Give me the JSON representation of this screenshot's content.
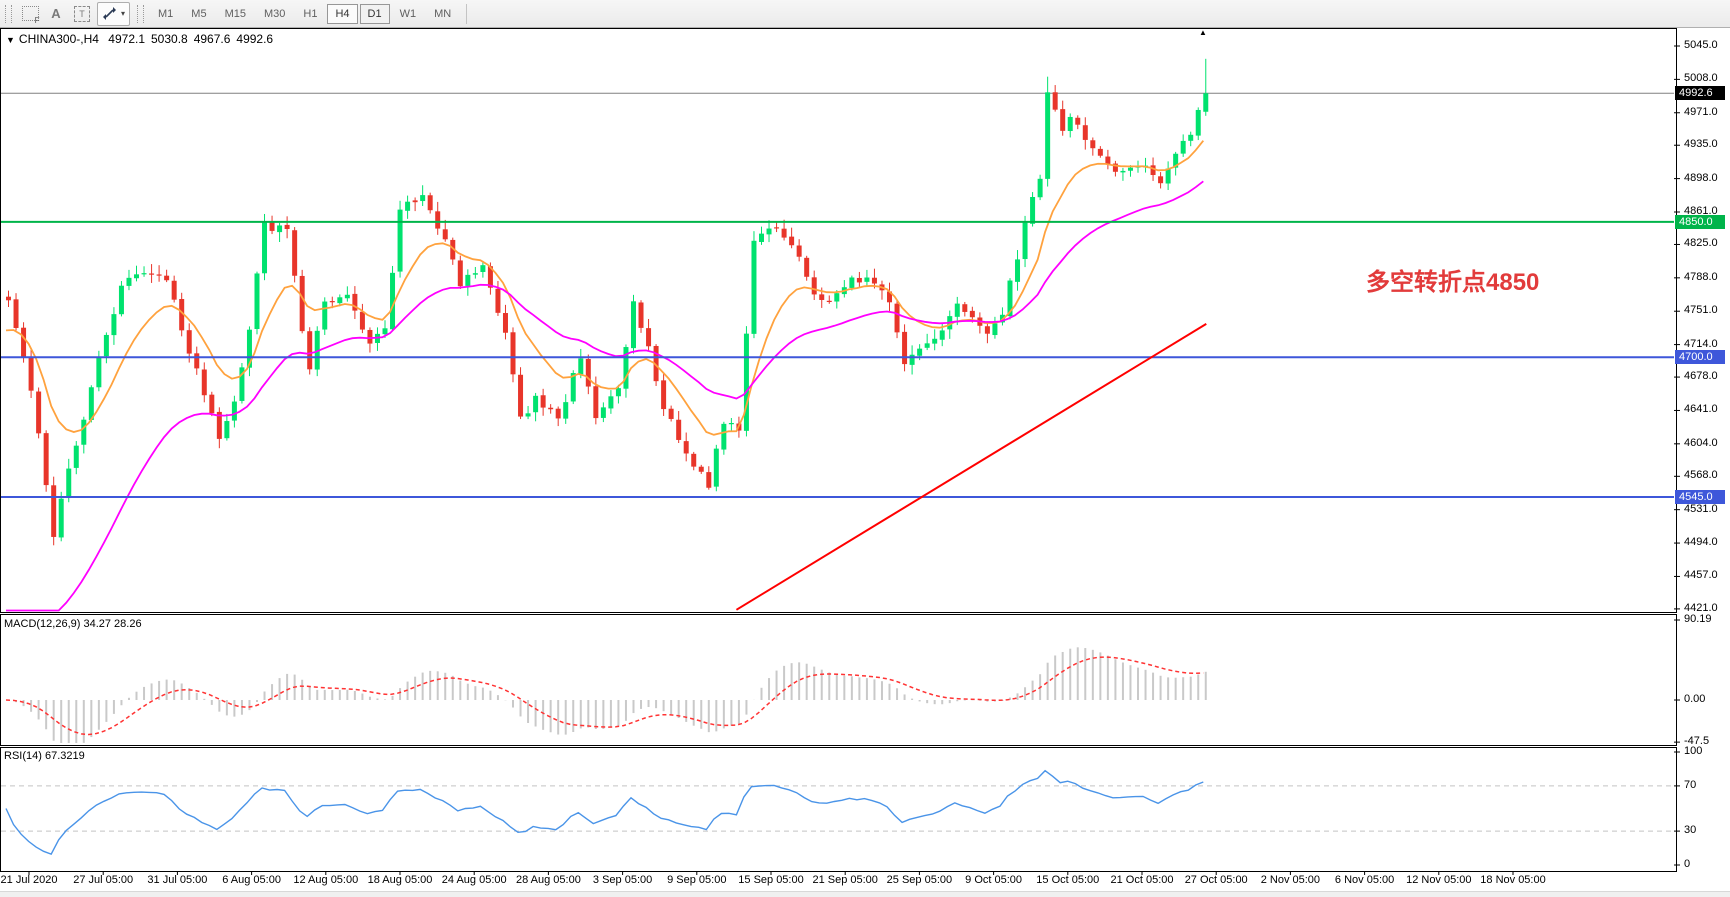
{
  "toolbar": {
    "shift_icon_letter": "F",
    "annotate_icon_letter": "A",
    "textbox_icon_letter": "T",
    "dropdown_caret": "▾",
    "timeframes": [
      {
        "label": "M1",
        "state": "normal"
      },
      {
        "label": "M5",
        "state": "normal"
      },
      {
        "label": "M15",
        "state": "normal"
      },
      {
        "label": "M30",
        "state": "normal"
      },
      {
        "label": "H1",
        "state": "normal"
      },
      {
        "label": "H4",
        "state": "active"
      },
      {
        "label": "D1",
        "state": "raised"
      },
      {
        "label": "W1",
        "state": "normal"
      },
      {
        "label": "MN",
        "state": "normal"
      }
    ]
  },
  "symbol_bar": {
    "caret": "▼",
    "symbol": "CHINA300-,H4",
    "open": "4972.1",
    "high": "5030.8",
    "low": "4967.6",
    "close": "4992.6"
  },
  "marker_glyph": "▲",
  "panels": {
    "macd_header": "MACD(12,26,9) 34.27 28.26",
    "rsi_header": "RSI(14) 67.3219"
  },
  "annotation": {
    "text": "多空转折点4850",
    "color": "#e23b3b"
  },
  "chart_data": {
    "type": "candlestick",
    "title": "CHINA300-,H4",
    "symbol": "CHINA300-",
    "timeframe": "H4",
    "bars_count": 160,
    "last_bar_ohlc": {
      "open": 4972.1,
      "high": 5030.8,
      "low": 4967.6,
      "close": 4992.6
    },
    "price_axis": {
      "ticks": [
        5045.0,
        5008.0,
        4971.0,
        4935.0,
        4898.0,
        4861.0,
        4825.0,
        4788.0,
        4751.0,
        4714.0,
        4678.0,
        4641.0,
        4604.0,
        4568.0,
        4531.0,
        4494.0,
        4457.0,
        4421.0
      ],
      "range": [
        4421.0,
        5045.0
      ]
    },
    "close_path_anchors": [
      [
        0,
        4763
      ],
      [
        2,
        4700
      ],
      [
        4,
        4619
      ],
      [
        6,
        4500
      ],
      [
        8,
        4581
      ],
      [
        10,
        4630
      ],
      [
        12,
        4697
      ],
      [
        15,
        4780
      ],
      [
        18,
        4797
      ],
      [
        21,
        4786
      ],
      [
        24,
        4708
      ],
      [
        28,
        4608
      ],
      [
        30,
        4653
      ],
      [
        32,
        4730
      ],
      [
        34,
        4847
      ],
      [
        37,
        4841
      ],
      [
        39,
        4730
      ],
      [
        40,
        4691
      ],
      [
        42,
        4763
      ],
      [
        45,
        4766
      ],
      [
        48,
        4719
      ],
      [
        50,
        4730
      ],
      [
        52,
        4863
      ],
      [
        55,
        4880
      ],
      [
        58,
        4830
      ],
      [
        60,
        4780
      ],
      [
        63,
        4802
      ],
      [
        66,
        4730
      ],
      [
        68,
        4630
      ],
      [
        70,
        4653
      ],
      [
        73,
        4630
      ],
      [
        76,
        4702
      ],
      [
        78,
        4630
      ],
      [
        81,
        4664
      ],
      [
        83,
        4763
      ],
      [
        85,
        4708
      ],
      [
        87,
        4642
      ],
      [
        90,
        4597
      ],
      [
        92,
        4570
      ],
      [
        93,
        4560
      ],
      [
        95,
        4630
      ],
      [
        97,
        4619
      ],
      [
        99,
        4830
      ],
      [
        102,
        4847
      ],
      [
        104,
        4824
      ],
      [
        107,
        4774
      ],
      [
        109,
        4758
      ],
      [
        112,
        4791
      ],
      [
        115,
        4780
      ],
      [
        117,
        4763
      ],
      [
        119,
        4697
      ],
      [
        121,
        4708
      ],
      [
        124,
        4730
      ],
      [
        126,
        4763
      ],
      [
        128,
        4741
      ],
      [
        130,
        4730
      ],
      [
        132,
        4752
      ],
      [
        134,
        4813
      ],
      [
        136,
        4880
      ],
      [
        137,
        4900
      ],
      [
        138,
        4990
      ],
      [
        139,
        4978
      ],
      [
        140,
        4952
      ],
      [
        141,
        4965
      ],
      [
        143,
        4941
      ],
      [
        145,
        4924
      ],
      [
        147,
        4902
      ],
      [
        149,
        4913
      ],
      [
        151,
        4908
      ],
      [
        153,
        4891
      ],
      [
        155,
        4924
      ],
      [
        157,
        4950
      ],
      [
        158,
        4975
      ],
      [
        159,
        4992.6
      ]
    ],
    "overlays": {
      "horizontal_lines": [
        {
          "price": 4850,
          "badge": "4850.0",
          "color": "#00b44a",
          "width": 2
        },
        {
          "price": 4700,
          "badge": "4700.0",
          "color": "#3e57da",
          "width": 2
        },
        {
          "price": 4545,
          "badge": "4545.0",
          "color": "#3e57da",
          "width": 2
        }
      ],
      "current_price_line": {
        "price": 4992.6,
        "badge": "4992.6",
        "color": "#808080",
        "badge_color": "#000000"
      },
      "trendline": {
        "from_bar": 97,
        "from_price": 4420,
        "to_bar": 159.4,
        "to_price": 4737,
        "color": "#ff0000",
        "width": 2
      },
      "moving_averages": [
        {
          "name": "fast-ma",
          "period": 11,
          "color": "#ffa23e"
        },
        {
          "name": "slow-ma",
          "period": 31,
          "color": "#ff00ff"
        }
      ]
    },
    "macd": {
      "params": "12,26,9",
      "current_macd": 34.27,
      "current_signal": 28.26,
      "axis_ticks": [
        {
          "label": "90.19",
          "v": 90.19
        },
        {
          "label": "0.00",
          "v": 0
        },
        {
          "label": "-47.5",
          "v": -47.5
        }
      ],
      "histogram_color": "#c9c9c9",
      "signal_color": "#ff3333"
    },
    "rsi": {
      "period": 14,
      "current": 67.3219,
      "axis_ticks": [
        {
          "label": "100",
          "v": 100
        },
        {
          "label": "70",
          "v": 70
        },
        {
          "label": "30",
          "v": 30
        },
        {
          "label": "0",
          "v": 0
        }
      ],
      "levels": [
        70,
        30
      ],
      "line_color": "#4a94e8",
      "level_color": "#c4c4c4"
    },
    "x_axis_labels": [
      "21 Jul 2020",
      "27 Jul 05:00",
      "31 Jul 05:00",
      "6 Aug 05:00",
      "12 Aug 05:00",
      "18 Aug 05:00",
      "24 Aug 05:00",
      "28 Aug 05:00",
      "3 Sep 05:00",
      "9 Sep 05:00",
      "15 Sep 05:00",
      "21 Sep 05:00",
      "25 Sep 05:00",
      "9 Oct 05:00",
      "15 Oct 05:00",
      "21 Oct 05:00",
      "27 Oct 05:00",
      "2 Nov 05:00",
      "6 Nov 05:00",
      "12 Nov 05:00",
      "18 Nov 05:00"
    ],
    "colors": {
      "bull": "#00e26e",
      "bear": "#e8352a",
      "background": "#ffffff",
      "frame": "#000000"
    }
  }
}
